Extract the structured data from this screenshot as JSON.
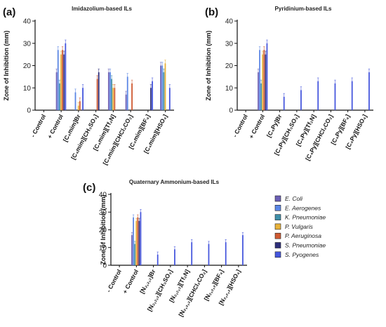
{
  "legend": [
    {
      "name": "E. Coli",
      "color": "#6b5fb5"
    },
    {
      "name": "E. Aerogenes",
      "color": "#5b86e5"
    },
    {
      "name": "K. Pneumoniae",
      "color": "#3f8fa8"
    },
    {
      "name": "P. Vulgaris",
      "color": "#e8b23a"
    },
    {
      "name": "P. Aeruginosa",
      "color": "#cf5a32"
    },
    {
      "name": "S. Pneumoniae",
      "color": "#2e2f7a"
    },
    {
      "name": "S. Pyogenes",
      "color": "#4455dd"
    }
  ],
  "chart_data": [
    {
      "panel": "(a)",
      "type": "bar",
      "title": "Imidazolium-based ILs",
      "ylabel": "Zone of Inhibition (mm)",
      "ylim": [
        0,
        40
      ],
      "yticks": [
        0,
        10,
        20,
        30,
        40
      ],
      "categories": [
        "- Control",
        "+ Control",
        "[C₄mim]Br",
        "[C₄mim][CH₃SO₃]",
        "[C₄mim][Tf₂N]",
        "[C₄mim][CHCl₂CO₂]",
        "[C₄mim][BF₄]",
        "[C₄mim][HSO₄]"
      ],
      "series": [
        {
          "name": "E. Coli",
          "values": [
            0,
            17,
            0,
            0,
            17,
            7,
            0,
            20
          ]
        },
        {
          "name": "E. Aerogenes",
          "values": [
            0,
            27,
            8,
            0,
            17,
            15,
            0,
            20
          ]
        },
        {
          "name": "K. Pneumoniae",
          "values": [
            0,
            12,
            0,
            0,
            14,
            0,
            0,
            17
          ]
        },
        {
          "name": "P. Vulgaris",
          "values": [
            0,
            25,
            2,
            0,
            10,
            0,
            0,
            21
          ]
        },
        {
          "name": "P. Aeruginosa",
          "values": [
            0,
            27,
            4,
            14,
            10,
            12,
            0,
            0
          ]
        },
        {
          "name": "S. Pneumoniae",
          "values": [
            0,
            25,
            0,
            17,
            0,
            0,
            10,
            0
          ]
        },
        {
          "name": "S. Pyogenes",
          "values": [
            0,
            30,
            10,
            0,
            0,
            0,
            13,
            10
          ]
        }
      ]
    },
    {
      "panel": "(b)",
      "type": "bar",
      "title": "Pyridinium-based ILs",
      "ylabel": "Zone of Inhibition (mm)",
      "ylim": [
        0,
        40
      ],
      "yticks": [
        0,
        10,
        20,
        30,
        40
      ],
      "categories": [
        "- Control",
        "+ Control",
        "[C₄Py]Br",
        "[C₄Py][CH₃SO₃]",
        "[C₄Py][Tf₂N]",
        "[C₄Py][CHCl₂CO₂]",
        "[C₄Py][BF₄]",
        "[C₄Py][HSO₄]"
      ],
      "series": [
        {
          "name": "E. Coli",
          "values": [
            0,
            17,
            0,
            0,
            0,
            0,
            0,
            0
          ]
        },
        {
          "name": "E. Aerogenes",
          "values": [
            0,
            27,
            0,
            0,
            0,
            0,
            0,
            0
          ]
        },
        {
          "name": "K. Pneumoniae",
          "values": [
            0,
            12,
            0,
            0,
            0,
            0,
            0,
            0
          ]
        },
        {
          "name": "P. Vulgaris",
          "values": [
            0,
            25,
            0,
            0,
            0,
            0,
            0,
            0
          ]
        },
        {
          "name": "P. Aeruginosa",
          "values": [
            0,
            27,
            0,
            0,
            0,
            0,
            0,
            0
          ]
        },
        {
          "name": "S. Pneumoniae",
          "values": [
            0,
            25,
            0,
            0,
            0,
            0,
            0,
            0
          ]
        },
        {
          "name": "S. Pyogenes",
          "values": [
            0,
            30,
            6,
            9,
            13,
            12,
            13,
            17
          ]
        }
      ]
    },
    {
      "panel": "(c)",
      "type": "bar",
      "title": "Quaternary Ammonium-based ILs",
      "ylabel": "Zone of Inhibition (mm)",
      "ylim": [
        0,
        40
      ],
      "yticks": [
        0,
        10,
        20,
        30,
        40
      ],
      "categories": [
        "- Control",
        "+ Control",
        "[N₂,₂,₂]Br",
        "[N₂,₂,₂][CH₃SO₃]",
        "[N₂,₂,₂][Tf₂N]",
        "[N₂,₂,₂][CHCl₂CO₂]",
        "[N₂,₂,₂][BF₄]",
        "[N₂,₂,₂][HSO₄]"
      ],
      "series": [
        {
          "name": "E. Coli",
          "values": [
            0,
            17,
            0,
            0,
            0,
            0,
            0,
            0
          ]
        },
        {
          "name": "E. Aerogenes",
          "values": [
            0,
            27,
            0,
            0,
            0,
            0,
            0,
            0
          ]
        },
        {
          "name": "K. Pneumoniae",
          "values": [
            0,
            12,
            0,
            0,
            0,
            0,
            0,
            0
          ]
        },
        {
          "name": "P. Vulgaris",
          "values": [
            0,
            25,
            0,
            0,
            0,
            0,
            0,
            0
          ]
        },
        {
          "name": "P. Aeruginosa",
          "values": [
            0,
            27,
            0,
            0,
            0,
            0,
            0,
            0
          ]
        },
        {
          "name": "S. Pneumoniae",
          "values": [
            0,
            25,
            0,
            0,
            0,
            0,
            0,
            0
          ]
        },
        {
          "name": "S. Pyogenes",
          "values": [
            0,
            30,
            6,
            9,
            13,
            12,
            13,
            17
          ]
        }
      ]
    }
  ]
}
